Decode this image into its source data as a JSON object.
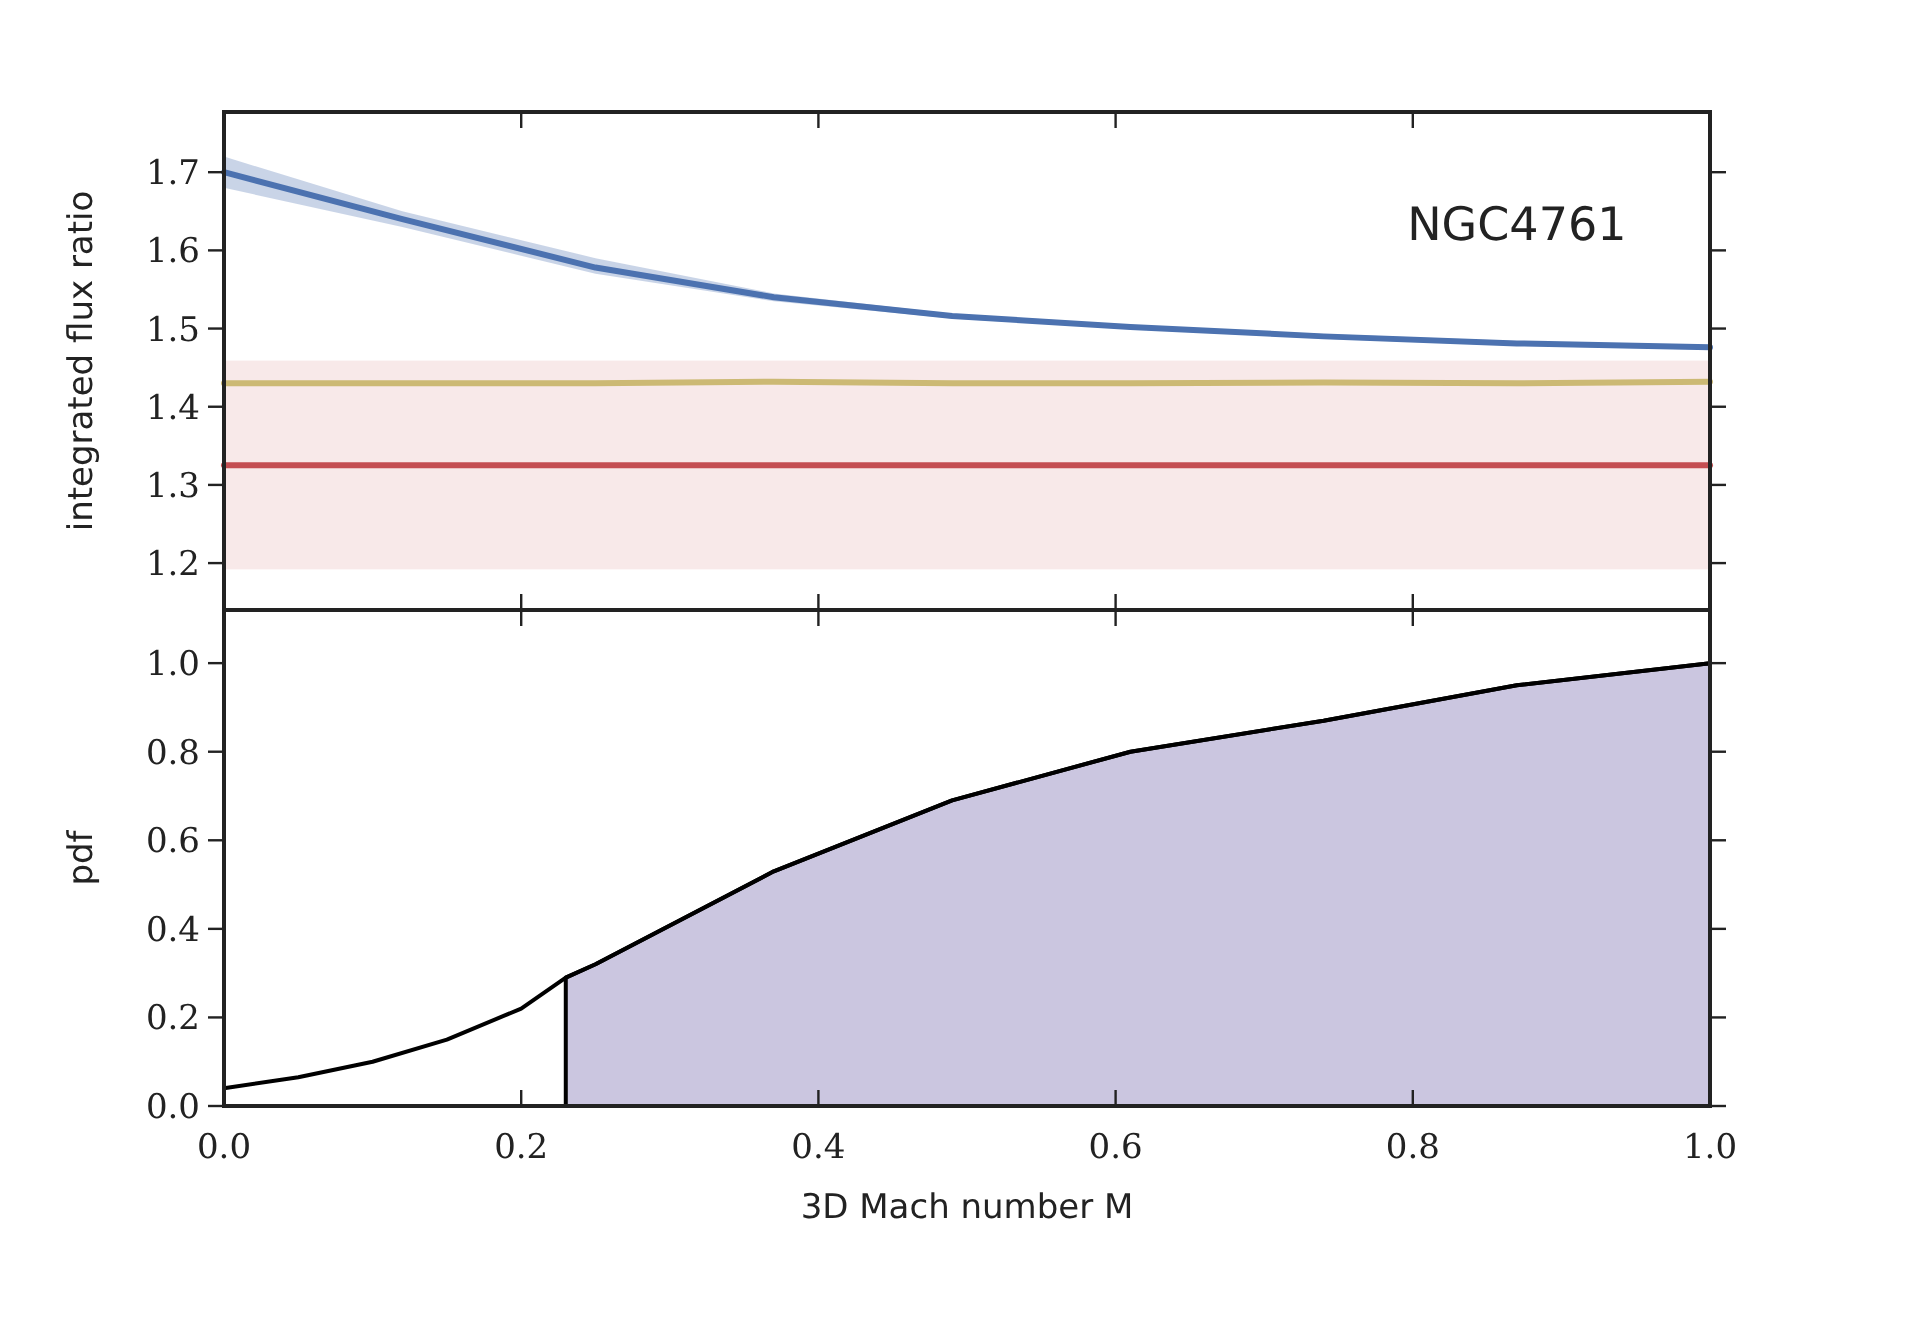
{
  "chart_data": [
    {
      "type": "line",
      "ylabel": "integrated flux ratio",
      "annotations": [
        "NGC4761"
      ],
      "xlim": [
        0,
        1
      ],
      "ylim": [
        1.14,
        1.777
      ],
      "xticks": [
        {
          "value": 0,
          "label": null
        },
        {
          "value": 0.2,
          "label": null
        },
        {
          "value": 0.4,
          "label": null
        },
        {
          "value": 0.6,
          "label": null
        },
        {
          "value": 0.8,
          "label": null
        },
        {
          "value": 1,
          "label": null
        }
      ],
      "yticks": [
        {
          "value": 1.2,
          "label": "1.2"
        },
        {
          "value": 1.3,
          "label": "1.3"
        },
        {
          "value": 1.4,
          "label": "1.4"
        },
        {
          "value": 1.5,
          "label": "1.5"
        },
        {
          "value": 1.6,
          "label": "1.6"
        },
        {
          "value": 1.7,
          "label": "1.7"
        }
      ],
      "tick_labels": "y",
      "grid": false,
      "bands": [
        {
          "axis": "y",
          "from": 1.192,
          "to": 1.459,
          "color": "#f8e9e9"
        }
      ],
      "series": [
        {
          "color": "#4c72b0",
          "x": [
            0,
            0.12,
            0.25,
            0.37,
            0.49,
            0.61,
            0.74,
            0.87,
            1.0
          ],
          "values": [
            1.7,
            1.64,
            1.578,
            1.54,
            1.516,
            1.502,
            1.49,
            1.481,
            1.476
          ],
          "lower": [
            1.68,
            1.63,
            1.57,
            1.535,
            1.513,
            1.499,
            1.487,
            1.478,
            1.473
          ],
          "upper": [
            1.72,
            1.65,
            1.59,
            1.545,
            1.519,
            1.505,
            1.493,
            1.484,
            1.479
          ]
        },
        {
          "color": "#ccb974",
          "x": [
            0,
            0.25,
            0.37,
            0.49,
            0.61,
            0.74,
            0.87,
            1.0
          ],
          "values": [
            1.43,
            1.43,
            1.432,
            1.43,
            1.43,
            1.431,
            1.43,
            1.432
          ]
        },
        {
          "color": "#c44e52",
          "x": [
            0,
            1.0
          ],
          "values": [
            1.325,
            1.325
          ]
        }
      ]
    },
    {
      "type": "line",
      "xlabel": "3D Mach number M",
      "ylabel": "pdf",
      "xlim": [
        0,
        1
      ],
      "ylim": [
        0,
        1.12
      ],
      "xticks": [
        {
          "value": 0,
          "label": "0.0"
        },
        {
          "value": 0.2,
          "label": "0.2"
        },
        {
          "value": 0.4,
          "label": "0.4"
        },
        {
          "value": 0.6,
          "label": "0.6"
        },
        {
          "value": 0.8,
          "label": "0.8"
        },
        {
          "value": 1,
          "label": "1.0"
        }
      ],
      "yticks": [
        {
          "value": 0,
          "label": "0.0"
        },
        {
          "value": 0.2,
          "label": "0.2"
        },
        {
          "value": 0.4,
          "label": "0.4"
        },
        {
          "value": 0.6,
          "label": "0.6"
        },
        {
          "value": 0.8,
          "label": "0.8"
        },
        {
          "value": 1,
          "label": "1.0"
        }
      ],
      "grid": false,
      "series": [
        {
          "type": "area",
          "color": "#cbc6e0",
          "x": [
            0.23,
            0.25,
            0.37,
            0.49,
            0.61,
            0.74,
            0.87,
            1.0
          ],
          "values": [
            0.29,
            0.32,
            0.53,
            0.69,
            0.8,
            0.87,
            0.95,
            1.0
          ]
        },
        {
          "color": "#000000",
          "x": [
            0,
            0.05,
            0.1,
            0.15,
            0.2,
            0.23,
            0.25,
            0.37,
            0.49,
            0.61,
            0.74,
            0.87,
            1.0
          ],
          "values": [
            0.04,
            0.065,
            0.1,
            0.15,
            0.22,
            0.29,
            0.32,
            0.53,
            0.69,
            0.8,
            0.87,
            0.95,
            1.0
          ]
        }
      ]
    }
  ]
}
